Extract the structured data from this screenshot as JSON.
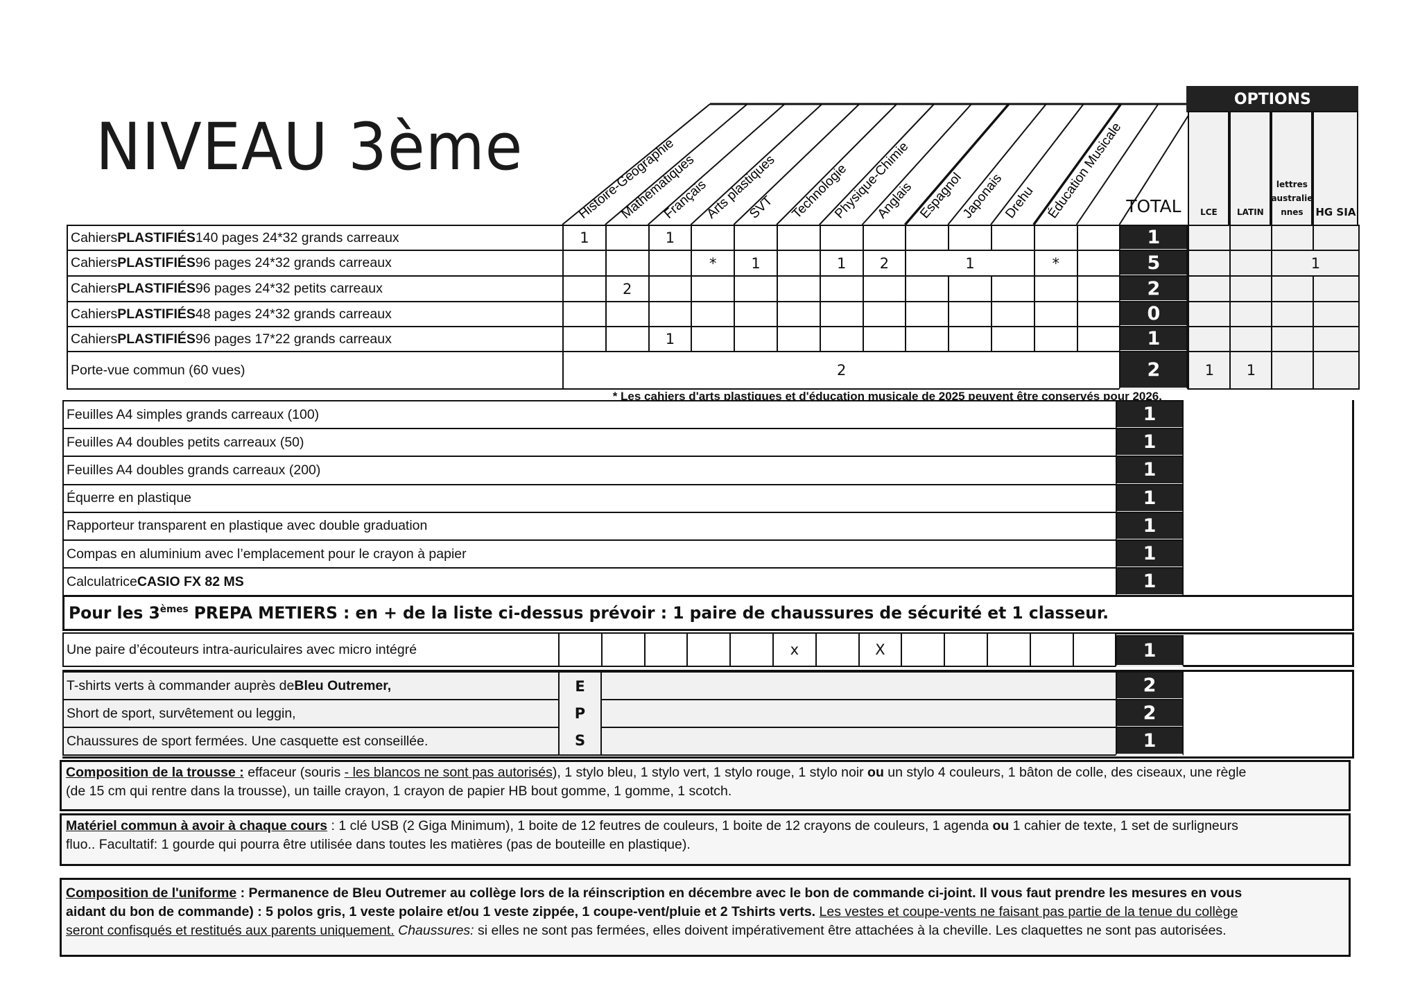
{
  "title": "NIVEAU 3ème",
  "main_table": {
    "subjects": [
      "Histoire-Géographie",
      "Mathématiques",
      "Français",
      "Arts plastiques",
      "SVT",
      "Technologie",
      "Physique-Chimie",
      "Anglais",
      "Espagnol",
      "Japonais",
      "Drehu",
      "Éducation Musicale",
      ""
    ],
    "total_header": "TOTAL",
    "options_title": "OPTIONS",
    "options_columns": [
      "LCE",
      "LATIN",
      "lettres australie nnes",
      "HG SIA"
    ],
    "rows": [
      {
        "label": [
          {
            "t": "Cahiers "
          },
          {
            "t": "PLASTIFIÉS",
            "b": true
          },
          {
            "t": " 140 pages 24*32 grands carreaux"
          }
        ],
        "cells": [
          {
            "v": "1"
          },
          {
            "v": ""
          },
          {
            "v": "1"
          },
          {
            "v": ""
          },
          {
            "v": ""
          },
          {
            "v": ""
          },
          {
            "v": ""
          },
          {
            "v": ""
          },
          {
            "v": ""
          },
          {
            "v": ""
          },
          {
            "v": ""
          },
          {
            "v": ""
          },
          {
            "v": ""
          }
        ],
        "total": "1",
        "options": [
          {
            "v": ""
          },
          {
            "v": ""
          },
          {
            "v": ""
          },
          {
            "v": ""
          }
        ]
      },
      {
        "label": [
          {
            "t": "Cahiers "
          },
          {
            "t": "PLASTIFIÉS",
            "b": true
          },
          {
            "t": " 96 pages 24*32 grands carreaux"
          }
        ],
        "cells": [
          {
            "v": ""
          },
          {
            "v": ""
          },
          {
            "v": ""
          },
          {
            "v": "*"
          },
          {
            "v": "1"
          },
          {
            "v": ""
          },
          {
            "v": "1"
          },
          {
            "v": "2"
          },
          {
            "v": "1",
            "span": 3
          },
          {
            "v": "*"
          },
          {
            "v": ""
          }
        ],
        "total": "5",
        "options": [
          {
            "v": ""
          },
          {
            "v": ""
          },
          {
            "v": "1",
            "span": 2
          }
        ]
      },
      {
        "label": [
          {
            "t": "Cahiers "
          },
          {
            "t": "PLASTIFIÉS",
            "b": true
          },
          {
            "t": " 96 pages 24*32 petits carreaux"
          }
        ],
        "cells": [
          {
            "v": ""
          },
          {
            "v": "2"
          },
          {
            "v": ""
          },
          {
            "v": ""
          },
          {
            "v": ""
          },
          {
            "v": ""
          },
          {
            "v": ""
          },
          {
            "v": ""
          },
          {
            "v": ""
          },
          {
            "v": ""
          },
          {
            "v": ""
          },
          {
            "v": ""
          },
          {
            "v": ""
          }
        ],
        "total": "2",
        "options": [
          {
            "v": ""
          },
          {
            "v": ""
          },
          {
            "v": ""
          },
          {
            "v": ""
          }
        ]
      },
      {
        "label": [
          {
            "t": "Cahiers "
          },
          {
            "t": "PLASTIFIÉS",
            "b": true
          },
          {
            "t": " 48 pages 24*32 grands carreaux"
          }
        ],
        "cells": [
          {
            "v": ""
          },
          {
            "v": ""
          },
          {
            "v": ""
          },
          {
            "v": ""
          },
          {
            "v": ""
          },
          {
            "v": ""
          },
          {
            "v": ""
          },
          {
            "v": ""
          },
          {
            "v": ""
          },
          {
            "v": ""
          },
          {
            "v": ""
          },
          {
            "v": ""
          },
          {
            "v": ""
          }
        ],
        "total": "0",
        "options": [
          {
            "v": ""
          },
          {
            "v": ""
          },
          {
            "v": ""
          },
          {
            "v": ""
          }
        ]
      },
      {
        "label": [
          {
            "t": "Cahiers "
          },
          {
            "t": "PLASTIFIÉS",
            "b": true
          },
          {
            "t": " 96 pages 17*22 grands carreaux"
          }
        ],
        "cells": [
          {
            "v": ""
          },
          {
            "v": ""
          },
          {
            "v": "1"
          },
          {
            "v": ""
          },
          {
            "v": ""
          },
          {
            "v": ""
          },
          {
            "v": ""
          },
          {
            "v": ""
          },
          {
            "v": ""
          },
          {
            "v": ""
          },
          {
            "v": ""
          },
          {
            "v": ""
          },
          {
            "v": ""
          }
        ],
        "total": "1",
        "options": [
          {
            "v": ""
          },
          {
            "v": ""
          },
          {
            "v": ""
          },
          {
            "v": ""
          }
        ]
      },
      {
        "label": [
          {
            "t": "Porte-vue commun  (60 vues)"
          }
        ],
        "cells": [
          {
            "v": "2",
            "span": 13
          }
        ],
        "total": "2",
        "options": [
          {
            "v": "1"
          },
          {
            "v": "1"
          },
          {
            "v": ""
          },
          {
            "v": ""
          }
        ]
      }
    ],
    "footnote": "* Les cahiers d'arts plastiques  et d'éducation musicale de 2025 peuvent être conservés pour 2026."
  },
  "supplies": [
    {
      "label": [
        {
          "t": "Feuilles A4 simples grands carreaux (100)"
        }
      ],
      "total": "1"
    },
    {
      "label": [
        {
          "t": "Feuilles A4 doubles petits carreaux (50)"
        }
      ],
      "total": "1"
    },
    {
      "label": [
        {
          "t": "Feuilles A4 doubles grands carreaux (200)"
        }
      ],
      "total": "1"
    },
    {
      "label": [
        {
          "t": "Équerre en plastique"
        }
      ],
      "total": "1"
    },
    {
      "label": [
        {
          "t": "Rapporteur transparent en plastique avec double graduation"
        }
      ],
      "total": "1"
    },
    {
      "label": [
        {
          "t": "Compas en aluminium avec l’emplacement pour le crayon à papier"
        }
      ],
      "total": "1"
    },
    {
      "label": [
        {
          "t": "Calculatrice "
        },
        {
          "t": "CASIO FX 82 MS",
          "b": true
        }
      ],
      "total": "1"
    }
  ],
  "prepa": {
    "prefix": "Pour les 3",
    "sup": "èmes",
    "text": " PREPA METIERS : en + de la liste ci-dessus prévoir : 1 paire de chaussures de sécurité et 1 classeur."
  },
  "headphones": {
    "label": "Une paire d’écouteurs intra-auriculaires avec micro intégré",
    "cells": [
      "",
      "",
      "",
      "",
      "",
      "x",
      "",
      "X",
      "",
      "",
      "",
      "",
      ""
    ],
    "total": "1"
  },
  "eps": {
    "letters": [
      "E",
      "P",
      "S"
    ],
    "rows": [
      {
        "label": [
          {
            "t": "T-shirts verts à commander auprès de "
          },
          {
            "t": "Bleu Outremer,",
            "b": true
          }
        ],
        "total": "2"
      },
      {
        "label": [
          {
            "t": "Short de sport, survêtement ou leggin,"
          }
        ],
        "total": "2"
      },
      {
        "label": [
          {
            "t": "Chaussures de sport fermées. Une casquette est conseillée."
          }
        ],
        "total": "1"
      }
    ]
  },
  "paragraphs": [
    {
      "name": "trousse",
      "lines": [
        [
          {
            "t": "Composition de la trousse :",
            "u": true,
            "b": true
          },
          {
            "t": " effaceur (souris "
          },
          {
            "t": "- les blancos ne sont pas autorisés",
            "u": true
          },
          {
            "t": "), 1 stylo bleu, 1 stylo vert, 1 stylo rouge, 1 stylo noir "
          },
          {
            "t": "ou",
            "b": true
          },
          {
            "t": " un stylo 4 couleurs, 1 bâton de colle, des ciseaux, une règle"
          }
        ],
        [
          {
            "t": "(de 15 cm qui rentre dans la trousse), un taille crayon, 1 crayon de papier HB bout gomme, 1 gomme, 1 scotch."
          }
        ]
      ]
    },
    {
      "name": "materiel",
      "lines": [
        [
          {
            "t": "Matériel commun à avoir à chaque cours",
            "u": true,
            "b": true
          },
          {
            "t": " : 1 clé USB (2 Giga Minimum), 1 boite de 12 feutres de couleurs, 1 boite de 12 crayons de couleurs, 1 agenda "
          },
          {
            "t": "ou",
            "b": true
          },
          {
            "t": " 1 cahier de texte, 1 set de surligneurs"
          }
        ],
        [
          {
            "t": "fluo.. Facultatif: 1 gourde qui pourra être utilisée dans toutes les matières (pas de bouteille en plastique)."
          }
        ]
      ]
    },
    {
      "name": "uniforme",
      "lines": [
        [
          {
            "t": "Composition de l'uniforme",
            "u": true,
            "b": true
          },
          {
            "t": " : Permanence de Bleu Outremer au collège lors de la réinscription  en décembre avec le bon de commande ci-joint.  Il vous faut prendre les mesures en vous",
            "b": true
          }
        ],
        [
          {
            "t": "aidant du bon de commande) : 5 polos gris, 1 veste polaire et/ou 1 veste zippée, 1 coupe-vent/pluie et 2 Tshirts verts.",
            "b": true
          },
          {
            "t": "  "
          },
          {
            "t": "Les vestes et coupe-vents ne faisant pas partie de la tenue du collège",
            "u": true
          }
        ],
        [
          {
            "t": "seront confisqués et restitués aux parents uniquement.",
            "u": true
          },
          {
            "t": " "
          },
          {
            "t": "Chaussures:",
            "i": true
          },
          {
            "t": "  si elles ne sont pas fermées, elles doivent impérativement être attachées à la cheville. Les claquettes ne sont pas autorisées."
          }
        ]
      ]
    }
  ],
  "colors": {
    "ink": "#111111",
    "total_bg": "#222222",
    "total_text": "#ffffff"
  }
}
